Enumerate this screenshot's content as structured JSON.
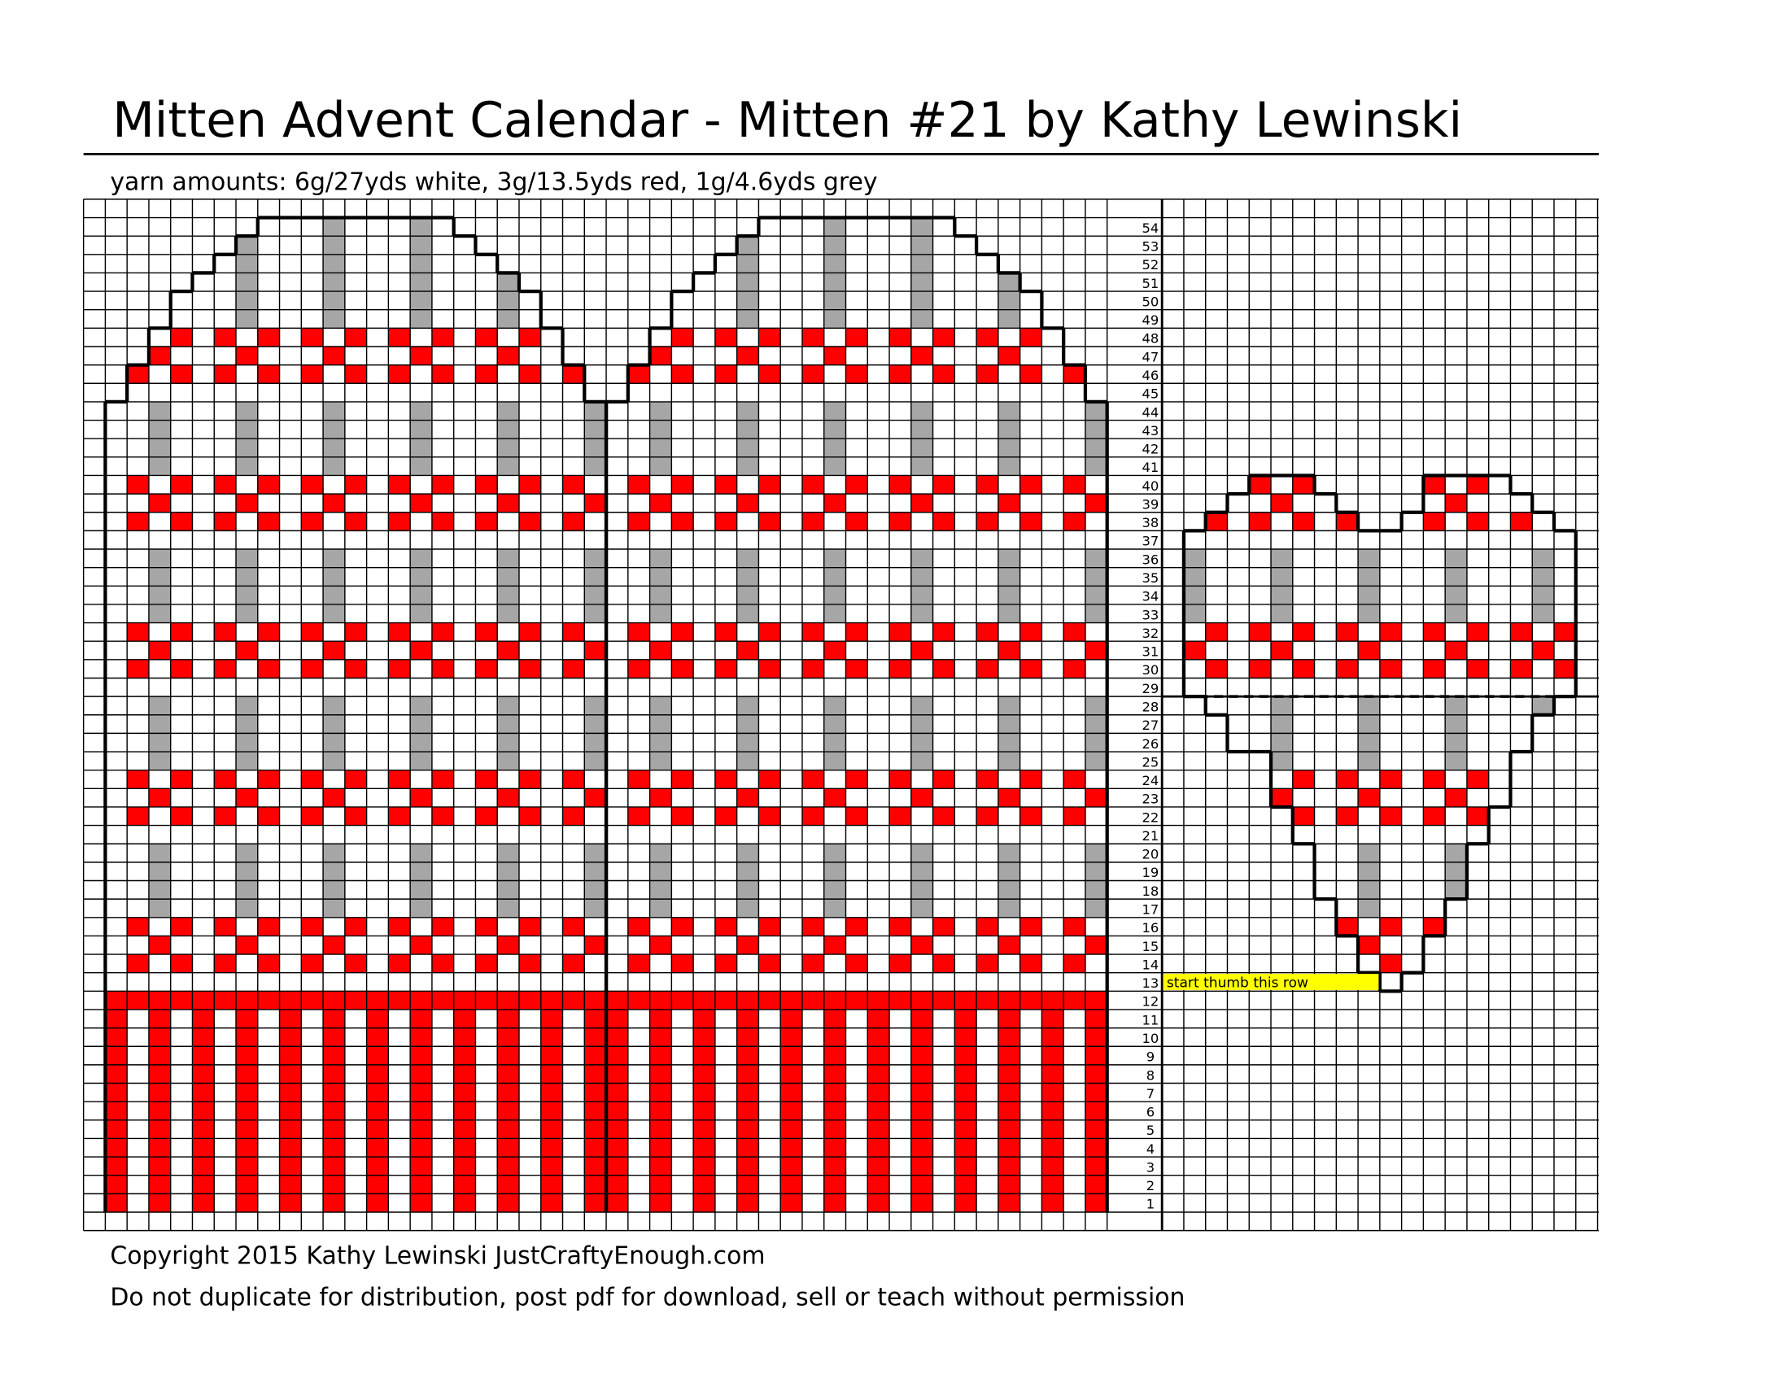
{
  "header": {
    "title": "Mitten Advent Calendar - Mitten #21 by Kathy Lewinski",
    "yarn_amounts": "yarn amounts: 6g/27yds white, 3g/13.5yds red, 1g/4.6yds grey"
  },
  "chart": {
    "row_numbers": [
      1,
      2,
      3,
      4,
      5,
      6,
      7,
      8,
      9,
      10,
      11,
      12,
      13,
      14,
      15,
      16,
      17,
      18,
      19,
      20,
      21,
      22,
      23,
      24,
      25,
      26,
      27,
      28,
      29,
      30,
      31,
      32,
      33,
      34,
      35,
      36,
      37,
      38,
      39,
      40,
      41,
      42,
      43,
      44,
      45,
      46,
      47,
      48,
      49,
      50,
      51,
      52,
      53,
      54
    ],
    "thumb_note": "start thumb this row"
  },
  "footer": {
    "copyright": "Copyright 2015 Kathy Lewinski JustCraftyEnough.com",
    "notice": "Do not duplicate for distribution, post pdf for download, sell or teach without permission"
  }
}
